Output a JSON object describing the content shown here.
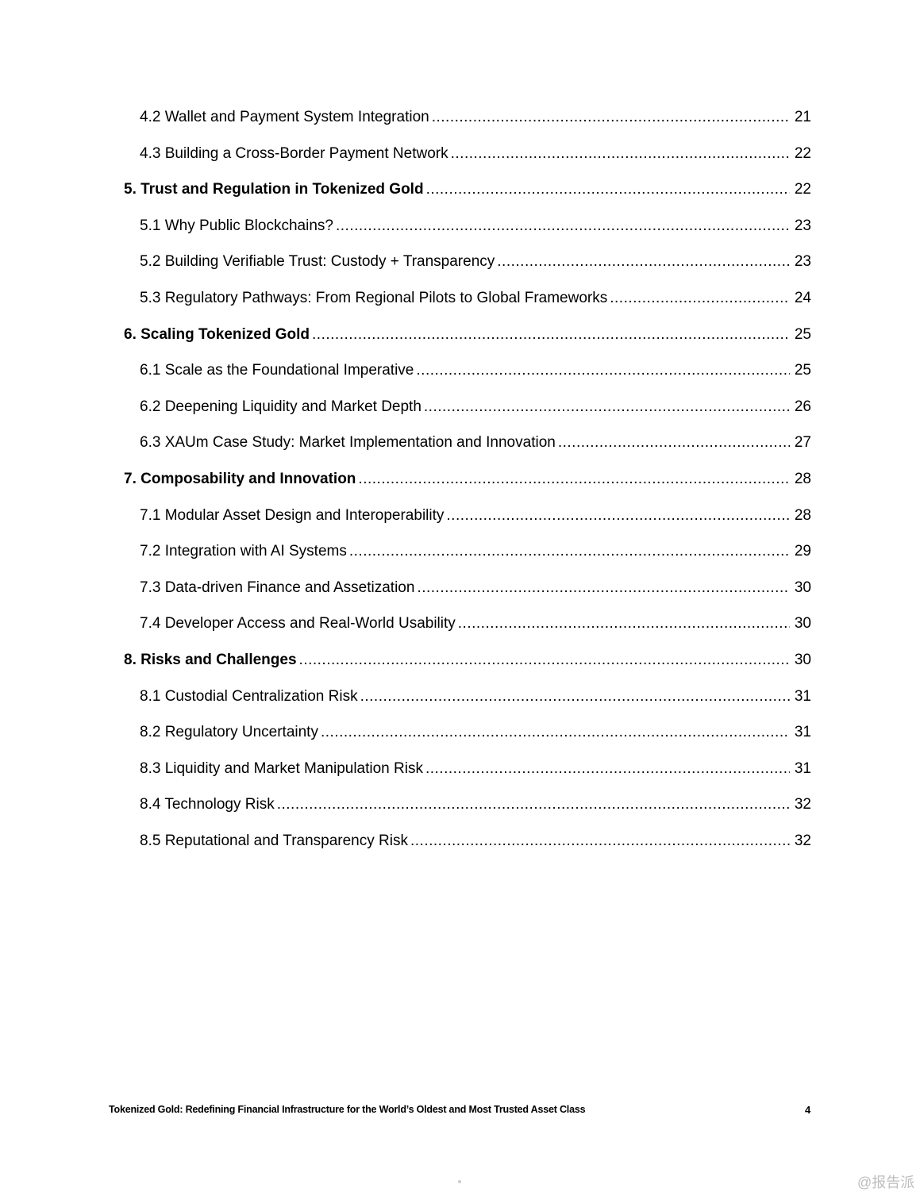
{
  "toc": [
    {
      "level": 2,
      "title": "4.2 Wallet and Payment System Integration",
      "page": "21"
    },
    {
      "level": 2,
      "title": "4.3 Building a Cross-Border Payment Network",
      "page": "22"
    },
    {
      "level": 1,
      "title": "5. Trust and Regulation in Tokenized Gold",
      "page": "22"
    },
    {
      "level": 2,
      "title": "5.1 Why Public Blockchains?",
      "page": "23"
    },
    {
      "level": 2,
      "title": "5.2 Building Verifiable Trust: Custody + Transparency",
      "page": "23"
    },
    {
      "level": 2,
      "title": "5.3 Regulatory Pathways: From Regional Pilots to Global Frameworks",
      "page": "24"
    },
    {
      "level": 1,
      "title": "6. Scaling Tokenized Gold",
      "page": "25"
    },
    {
      "level": 2,
      "title": "6.1 Scale as the Foundational Imperative",
      "page": "25"
    },
    {
      "level": 2,
      "title": "6.2 Deepening Liquidity and Market Depth",
      "page": "26"
    },
    {
      "level": 2,
      "title": "6.3 XAUm Case Study: Market Implementation and Innovation",
      "page": "27"
    },
    {
      "level": 1,
      "title": "7. Composability and Innovation",
      "page": "28"
    },
    {
      "level": 2,
      "title": "7.1 Modular Asset Design and Interoperability",
      "page": "28"
    },
    {
      "level": 2,
      "title": "7.2 Integration with AI Systems",
      "page": "29"
    },
    {
      "level": 2,
      "title": "7.3 Data-driven Finance and Assetization",
      "page": "30"
    },
    {
      "level": 2,
      "title": "7.4 Developer Access and Real-World Usability",
      "page": "30"
    },
    {
      "level": 1,
      "title": "8. Risks and Challenges",
      "page": "30"
    },
    {
      "level": 2,
      "title": "8.1 Custodial Centralization Risk",
      "page": "31"
    },
    {
      "level": 2,
      "title": "8.2 Regulatory Uncertainty",
      "page": "31"
    },
    {
      "level": 2,
      "title": "8.3 Liquidity and Market Manipulation Risk",
      "page": "31"
    },
    {
      "level": 2,
      "title": "8.4 Technology Risk",
      "page": "32"
    },
    {
      "level": 2,
      "title": "8.5 Reputational and Transparency Risk",
      "page": "32"
    }
  ],
  "footer": {
    "title": "Tokenized Gold: Redefining Financial Infrastructure for the World’s Oldest and Most Trusted Asset Class",
    "page_number": "4"
  },
  "watermark": "@报告派"
}
